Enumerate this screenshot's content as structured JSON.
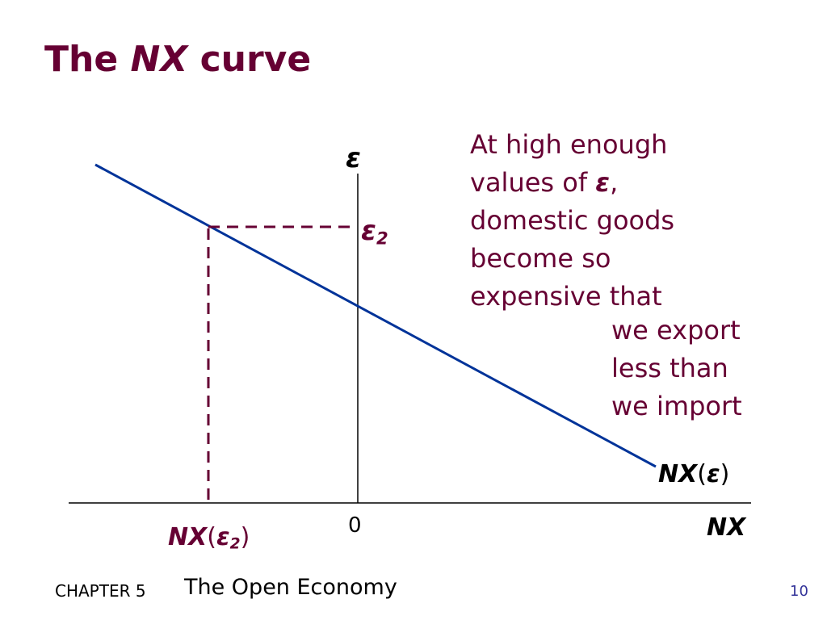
{
  "title": {
    "prefix": "The ",
    "emph": "NX",
    "suffix": " curve"
  },
  "axes": {
    "y_label": "ε",
    "x_label": "NX",
    "origin_label": "0"
  },
  "curve": {
    "label_nx": "NX",
    "label_open": "(",
    "label_eps": "ε",
    "label_close": ")"
  },
  "point": {
    "eps_symbol": "ε",
    "eps_sub": "2",
    "nx_prefix": "NX",
    "nx_open": "(",
    "nx_eps": "ε",
    "nx_sub": "2",
    "nx_close": ")"
  },
  "annotation": {
    "para1_lines": [
      "At high enough",
      "values of ",
      "domestic goods",
      "become so",
      "expensive that"
    ],
    "para1_eps": "ε",
    "para1_comma": ",",
    "para2_lines": [
      "we export",
      "less than",
      "we import"
    ]
  },
  "footer": {
    "chapter": "CHAPTER 5",
    "title": "The Open Economy",
    "page": "10"
  },
  "colors": {
    "title": "#660033",
    "curve": "#003399",
    "guide": "#660033",
    "axis": "#000000"
  }
}
